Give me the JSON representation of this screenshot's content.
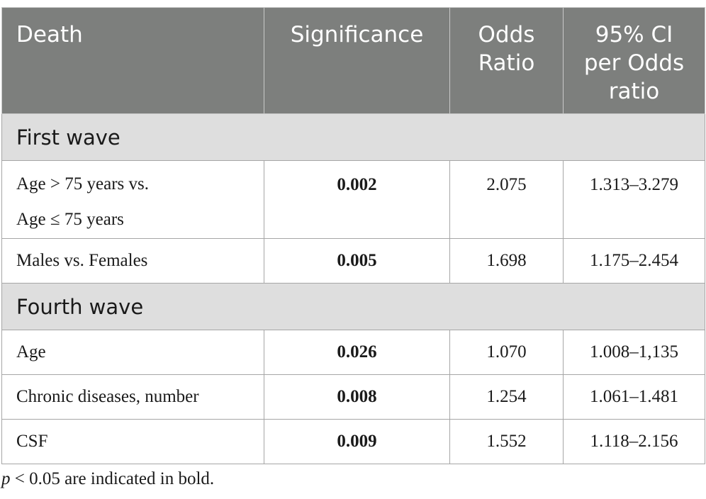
{
  "table": {
    "headers": [
      "Death",
      "Significance",
      "Odds Ratio",
      "95% CI per Odds ratio"
    ],
    "header_lines": {
      "death": [
        "Death"
      ],
      "significance": [
        "Significance"
      ],
      "odds_ratio": [
        "Odds",
        "Ratio"
      ],
      "ci": [
        "95% CI",
        "per Odds",
        "ratio"
      ]
    },
    "sections": [
      {
        "title": "First wave",
        "rows": [
          {
            "label_lines": [
              "Age > 75 years vs.",
              "Age ≤ 75 years"
            ],
            "significance": "0.002",
            "odds_ratio": "2.075",
            "ci": "1.313–3.279"
          },
          {
            "label_lines": [
              "Males vs. Females"
            ],
            "significance": "0.005",
            "odds_ratio": "1.698",
            "ci": "1.175–2.454"
          }
        ]
      },
      {
        "title": "Fourth wave",
        "rows": [
          {
            "label_lines": [
              "Age"
            ],
            "significance": "0.026",
            "odds_ratio": "1.070",
            "ci": "1.008–1,135"
          },
          {
            "label_lines": [
              "Chronic diseases, number"
            ],
            "significance": "0.008",
            "odds_ratio": "1.254",
            "ci": "1.061–1.481"
          },
          {
            "label_lines": [
              "CSF"
            ],
            "significance": "0.009",
            "odds_ratio": "1.552",
            "ci": "1.118–2.156"
          }
        ]
      }
    ]
  },
  "footnote": {
    "p_symbol": "p",
    "text": " < 0.05 are indicated in bold."
  },
  "colors": {
    "header_bg": "#7d7f7d",
    "section_bg": "#dedede",
    "border": "#a6a6a6"
  }
}
